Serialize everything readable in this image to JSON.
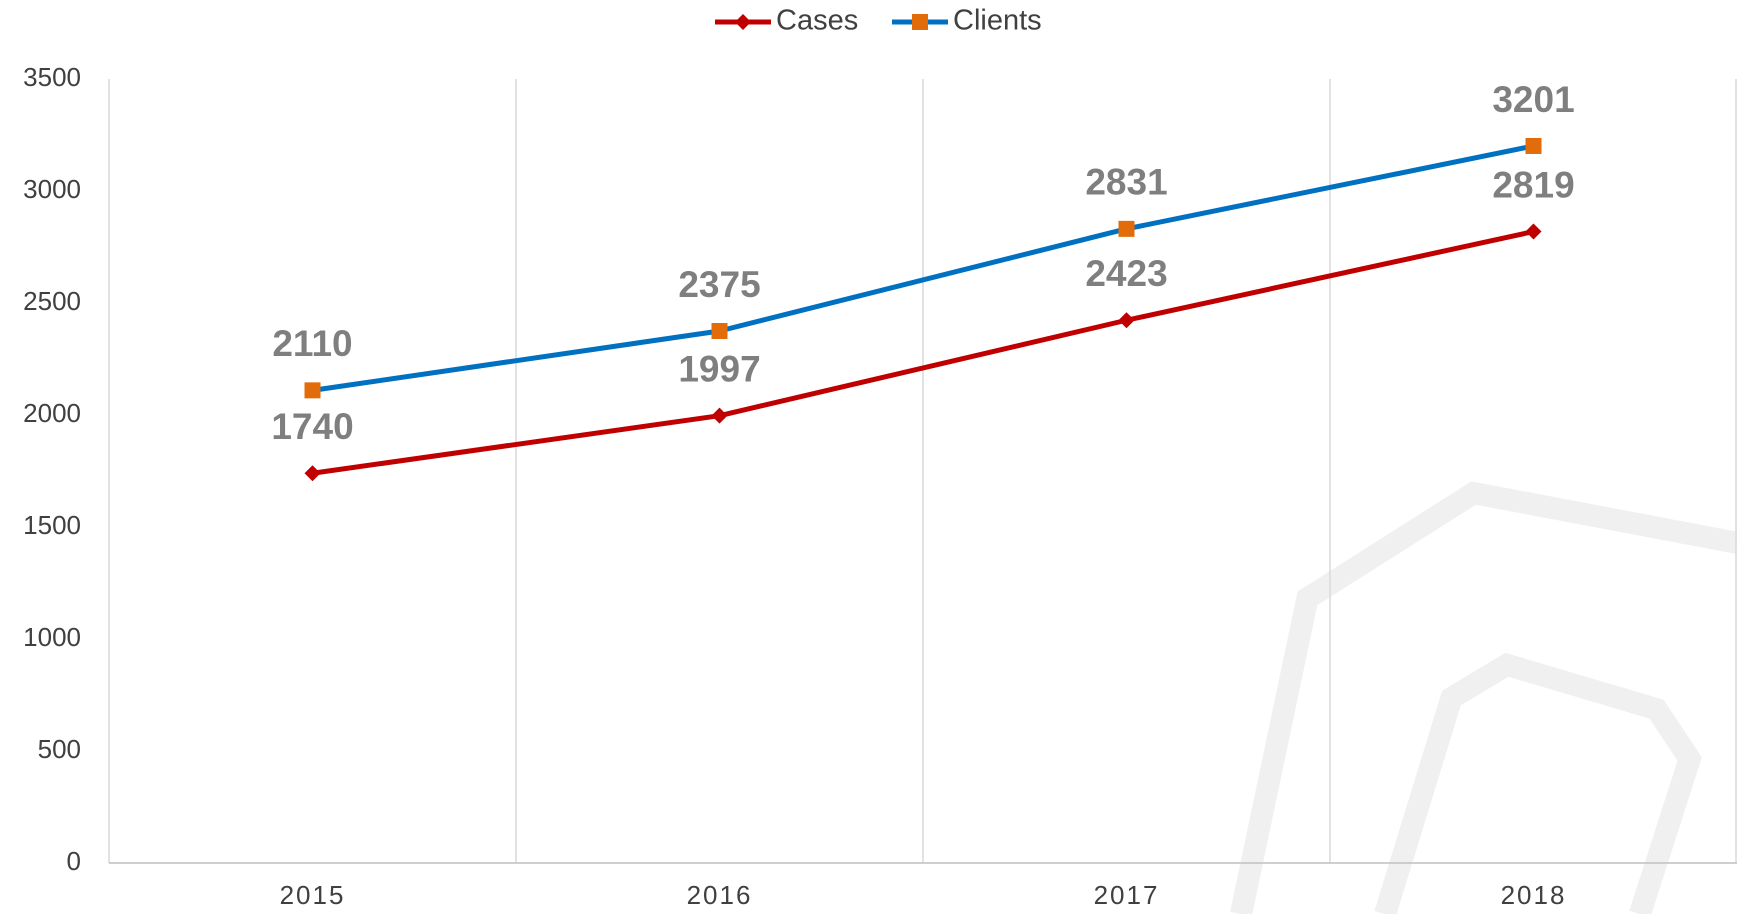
{
  "chart_data": {
    "type": "line",
    "categories": [
      "2015",
      "2016",
      "2017",
      "2018"
    ],
    "series": [
      {
        "name": "Cases",
        "color": "#c00000",
        "marker": "diamond",
        "marker_color": "#c00000",
        "values": [
          1740,
          1997,
          2423,
          2819
        ]
      },
      {
        "name": "Clients",
        "color": "#0070c0",
        "marker": "square",
        "marker_color": "#e36c0a",
        "values": [
          2110,
          2375,
          2831,
          3201
        ]
      }
    ],
    "ylim": [
      0,
      3500
    ],
    "yticks": [
      0,
      500,
      1000,
      1500,
      2000,
      2500,
      3000,
      3500
    ],
    "legend": "top",
    "data_labels": true
  }
}
